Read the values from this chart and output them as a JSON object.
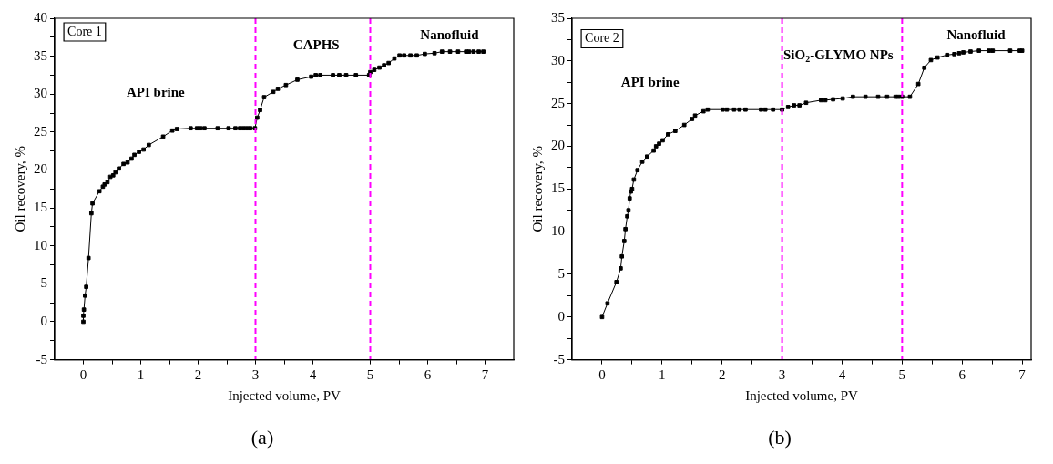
{
  "chart_data": [
    {
      "type": "line",
      "title": "(a)",
      "xlabel": "Injected volume, PV",
      "ylabel": "Oil recovery, %",
      "annotations": [
        "Core 1",
        "API brine",
        "CAPHS",
        "Nanofluid"
      ],
      "series": [
        {
          "color": "#000000",
          "x": [
            0,
            0,
            0.01,
            0.03,
            0.05,
            0.09,
            0.14,
            0.16,
            0.28,
            0.34,
            0.37,
            0.42,
            0.47,
            0.52,
            0.56,
            0.62,
            0.7,
            0.77,
            0.84,
            0.89,
            0.97,
            1.05,
            1.14,
            1.39,
            1.55,
            1.63,
            1.87,
            1.98,
            2.04,
            2.11,
            2.34,
            2.53,
            2.65,
            2.73,
            2.79,
            2.85,
            2.91,
            2.99,
            3.03,
            3.08,
            3.15,
            3.31,
            3.39,
            3.53,
            3.73,
            3.97,
            4.05,
            4.13,
            4.35,
            4.46,
            4.58,
            4.75,
            4.98,
            5.0,
            5.07,
            5.16,
            5.24,
            5.32,
            5.42,
            5.51,
            5.59,
            5.7,
            5.81,
            5.95,
            6.12,
            6.25,
            6.39,
            6.53,
            6.67,
            6.72,
            6.8,
            6.89,
            6.97
          ],
          "values": [
            0,
            0.8,
            1.6,
            3.45,
            4.6,
            8.4,
            14.3,
            15.6,
            17.2,
            17.8,
            18.1,
            18.4,
            19.1,
            19.3,
            19.7,
            20.2,
            20.8,
            21,
            21.5,
            22,
            22.4,
            22.7,
            23.3,
            24.4,
            25.2,
            25.4,
            25.5,
            25.5,
            25.5,
            25.5,
            25.5,
            25.5,
            25.5,
            25.5,
            25.5,
            25.5,
            25.5,
            25.5,
            26.9,
            27.9,
            29.6,
            30.3,
            30.7,
            31.2,
            31.9,
            32.3,
            32.5,
            32.5,
            32.5,
            32.5,
            32.5,
            32.5,
            32.5,
            32.9,
            33.2,
            33.5,
            33.8,
            34.1,
            34.7,
            35.1,
            35.1,
            35.1,
            35.1,
            35.3,
            35.4,
            35.6,
            35.6,
            35.6,
            35.6,
            35.6,
            35.6,
            35.6,
            35.6
          ]
        }
      ],
      "xlim": [
        -0.5,
        7.5
      ],
      "xticks": [
        0,
        {
          "value": 0.5,
          "label": null
        },
        1,
        {
          "value": 1.5,
          "label": null
        },
        2,
        {
          "value": 2.5,
          "label": null
        },
        3,
        {
          "value": 3.5,
          "label": null
        },
        4,
        {
          "value": 4.5,
          "label": null
        },
        5,
        {
          "value": 5.5,
          "label": null
        },
        6,
        {
          "value": 6.5,
          "label": null
        },
        7
      ],
      "ylim": [
        -5,
        40
      ],
      "yticks": [
        -5,
        {
          "value": -2.5,
          "label": null
        },
        0,
        {
          "value": 2.5,
          "label": null
        },
        5,
        {
          "value": 7.5,
          "label": null
        },
        10,
        {
          "value": 12.5,
          "label": null
        },
        15,
        {
          "value": 17.5,
          "label": null
        },
        20,
        {
          "value": 22.5,
          "label": null
        },
        25,
        {
          "value": 27.5,
          "label": null
        },
        30,
        {
          "value": 32.5,
          "label": null
        },
        35,
        {
          "value": 37.5,
          "label": null
        },
        40
      ],
      "ref_lines": [
        {
          "axis": "x",
          "value": 3,
          "color": "#ff00ff",
          "line_style": "dashed"
        },
        {
          "axis": "x",
          "value": 5,
          "color": "#ff00ff",
          "line_style": "dashed"
        }
      ],
      "marker": "square",
      "line_style": "solid",
      "grid": false
    },
    {
      "type": "line",
      "title": "(b)",
      "xlabel": "Injected volume, PV",
      "ylabel": "Oil recovery, %",
      "annotations": [
        "Core 2",
        "API brine",
        "SiO$_{2}$-GLYMO NPs",
        "Nanofluid"
      ],
      "series": [
        {
          "color": "#000000",
          "x": [
            0,
            0.09,
            0.24,
            0.31,
            0.33,
            0.37,
            0.39,
            0.42,
            0.44,
            0.46,
            0.48,
            0.5,
            0.53,
            0.59,
            0.67,
            0.75,
            0.86,
            0.9,
            0.95,
            1.01,
            1.1,
            1.22,
            1.37,
            1.5,
            1.55,
            1.69,
            1.76,
            2.01,
            2.08,
            2.2,
            2.29,
            2.39,
            2.65,
            2.72,
            2.85,
            3.0,
            3.1,
            3.2,
            3.29,
            3.4,
            3.65,
            3.72,
            3.85,
            4.01,
            4.18,
            4.39,
            4.6,
            4.75,
            4.89,
            4.94,
            5.0,
            5.13,
            5.27,
            5.37,
            5.48,
            5.59,
            5.75,
            5.87,
            5.95,
            6.02,
            6.14,
            6.28,
            6.45,
            6.51,
            6.8,
            6.96,
            7.0
          ],
          "values": [
            0,
            1.6,
            4.1,
            5.7,
            7.1,
            8.9,
            10.3,
            11.8,
            12.5,
            13.9,
            14.7,
            15.0,
            16.1,
            17.2,
            18.2,
            18.8,
            19.5,
            20,
            20.3,
            20.7,
            21.4,
            21.8,
            22.5,
            23.2,
            23.6,
            24.1,
            24.3,
            24.3,
            24.3,
            24.3,
            24.3,
            24.3,
            24.3,
            24.3,
            24.3,
            24.3,
            24.6,
            24.8,
            24.8,
            25.1,
            25.4,
            25.4,
            25.5,
            25.6,
            25.8,
            25.8,
            25.8,
            25.8,
            25.8,
            25.8,
            25.8,
            25.8,
            27.3,
            29.2,
            30.1,
            30.4,
            30.7,
            30.8,
            30.9,
            31.0,
            31.1,
            31.2,
            31.2,
            31.2,
            31.2,
            31.2,
            31.2
          ]
        }
      ],
      "xlim": [
        -0.5,
        7.15
      ],
      "xticks": [
        0,
        {
          "value": 0.5,
          "label": null
        },
        1,
        {
          "value": 1.5,
          "label": null
        },
        2,
        {
          "value": 2.5,
          "label": null
        },
        3,
        {
          "value": 3.5,
          "label": null
        },
        4,
        {
          "value": 4.5,
          "label": null
        },
        5,
        {
          "value": 5.5,
          "label": null
        },
        6,
        {
          "value": 6.5,
          "label": null
        },
        7
      ],
      "ylim": [
        -5,
        35
      ],
      "yticks": [
        -5,
        {
          "value": -2.5,
          "label": null
        },
        0,
        {
          "value": 2.5,
          "label": null
        },
        5,
        {
          "value": 7.5,
          "label": null
        },
        10,
        {
          "value": 12.5,
          "label": null
        },
        15,
        {
          "value": 17.5,
          "label": null
        },
        20,
        {
          "value": 22.5,
          "label": null
        },
        25,
        {
          "value": 27.5,
          "label": null
        },
        30,
        {
          "value": 32.5,
          "label": null
        },
        35
      ],
      "ref_lines": [
        {
          "axis": "x",
          "value": 3,
          "color": "#ff00ff",
          "line_style": "dashed"
        },
        {
          "axis": "x",
          "value": 5,
          "color": "#ff00ff",
          "line_style": "dashed"
        }
      ],
      "marker": "square",
      "line_style": "solid",
      "grid": false
    }
  ]
}
